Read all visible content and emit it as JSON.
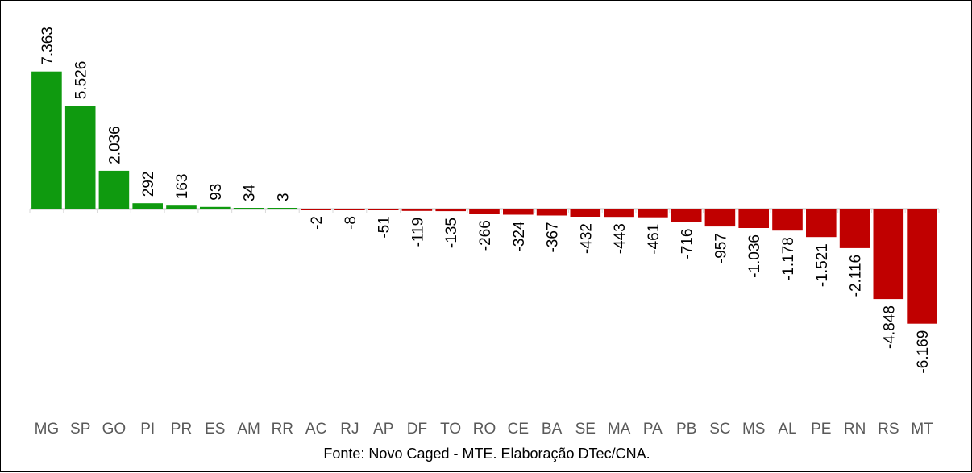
{
  "chart_data": {
    "type": "bar",
    "categories": [
      "MG",
      "SP",
      "GO",
      "PI",
      "PR",
      "ES",
      "AM",
      "RR",
      "AC",
      "RJ",
      "AP",
      "DF",
      "TO",
      "RO",
      "CE",
      "BA",
      "SE",
      "MA",
      "PA",
      "PB",
      "SC",
      "MS",
      "AL",
      "PE",
      "RN",
      "RS",
      "MT"
    ],
    "values": [
      7363,
      5526,
      2036,
      292,
      163,
      93,
      34,
      3,
      -2,
      -8,
      -51,
      -119,
      -135,
      -266,
      -324,
      -367,
      -432,
      -443,
      -461,
      -716,
      -957,
      -1036,
      -1178,
      -1521,
      -2116,
      -4848,
      -6169
    ],
    "value_labels": [
      "7.363",
      "5.526",
      "2.036",
      "292",
      "163",
      "93",
      "34",
      "3",
      "-2",
      "-8",
      "-51",
      "-119",
      "-135",
      "-266",
      "-324",
      "-367",
      "-432",
      "-443",
      "-461",
      "-716",
      "-957",
      "-1.036",
      "-1.178",
      "-1.521",
      "-2.116",
      "-4.848",
      "-6.169"
    ],
    "title": "",
    "xlabel": "",
    "ylabel": "",
    "ylim": [
      -10000,
      8000
    ],
    "grid": false,
    "legend": "none",
    "colors": {
      "positive": "#0f9a0f",
      "negative": "#c00000",
      "axis": "#d9d9d9",
      "tick_label": "#595959"
    },
    "source": "Fonte: Novo Caged - MTE. Elaboração DTec/CNA."
  }
}
